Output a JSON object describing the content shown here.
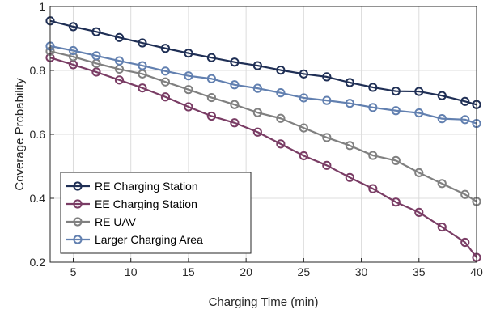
{
  "chart_data": {
    "type": "line",
    "title": "",
    "xlabel": "Charging Time (min)",
    "ylabel": "Coverage Probability",
    "xlim": [
      3,
      40
    ],
    "ylim": [
      0.2,
      1.0
    ],
    "xticks": [
      5,
      10,
      15,
      20,
      25,
      30,
      35,
      40
    ],
    "yticks": [
      0.2,
      0.4,
      0.6,
      0.8,
      1.0
    ],
    "ytick_labels": [
      "0.2",
      "0.4",
      "0.6",
      "0.8",
      "1"
    ],
    "grid": true,
    "legend_position": "bottom-left",
    "x": [
      3,
      5,
      7,
      9,
      11,
      13,
      15,
      17,
      19,
      21,
      23,
      25,
      27,
      29,
      31,
      33,
      35,
      37,
      39,
      40
    ],
    "series": [
      {
        "name": "RE Charging Station",
        "color": "#1f2f55",
        "x": [
          3,
          5,
          7,
          9,
          11,
          13,
          15,
          17,
          19,
          21,
          23,
          25,
          27,
          29,
          31,
          33,
          35,
          37,
          39,
          40
        ],
        "values": [
          0.955,
          0.937,
          0.921,
          0.903,
          0.886,
          0.869,
          0.854,
          0.84,
          0.826,
          0.815,
          0.801,
          0.789,
          0.78,
          0.762,
          0.747,
          0.735,
          0.734,
          0.721,
          0.703,
          0.693
        ]
      },
      {
        "name": "EE Charging Station",
        "color": "#7a3d65",
        "x": [
          3,
          5,
          7,
          9,
          11,
          13,
          15,
          17,
          19,
          21,
          23,
          25,
          27,
          29,
          31,
          33,
          35,
          37,
          39,
          40
        ],
        "values": [
          0.84,
          0.818,
          0.795,
          0.77,
          0.745,
          0.717,
          0.686,
          0.657,
          0.636,
          0.607,
          0.57,
          0.533,
          0.503,
          0.465,
          0.43,
          0.388,
          0.356,
          0.31,
          0.262,
          0.215
        ]
      },
      {
        "name": "RE UAV",
        "color": "#808080",
        "x": [
          3,
          5,
          7,
          9,
          11,
          13,
          15,
          17,
          19,
          21,
          23,
          25,
          27,
          29,
          31,
          33,
          35,
          37,
          39,
          40
        ],
        "values": [
          0.86,
          0.843,
          0.822,
          0.804,
          0.789,
          0.764,
          0.74,
          0.715,
          0.693,
          0.668,
          0.65,
          0.62,
          0.59,
          0.565,
          0.534,
          0.518,
          0.48,
          0.446,
          0.412,
          0.39
        ]
      },
      {
        "name": "Larger Charging Area",
        "color": "#6280b0",
        "x": [
          3,
          5,
          7,
          9,
          11,
          13,
          15,
          17,
          19,
          21,
          23,
          25,
          27,
          29,
          31,
          33,
          35,
          37,
          39,
          40
        ],
        "values": [
          0.876,
          0.862,
          0.846,
          0.83,
          0.815,
          0.798,
          0.783,
          0.774,
          0.755,
          0.744,
          0.73,
          0.714,
          0.706,
          0.697,
          0.684,
          0.674,
          0.667,
          0.649,
          0.646,
          0.634
        ]
      }
    ]
  }
}
